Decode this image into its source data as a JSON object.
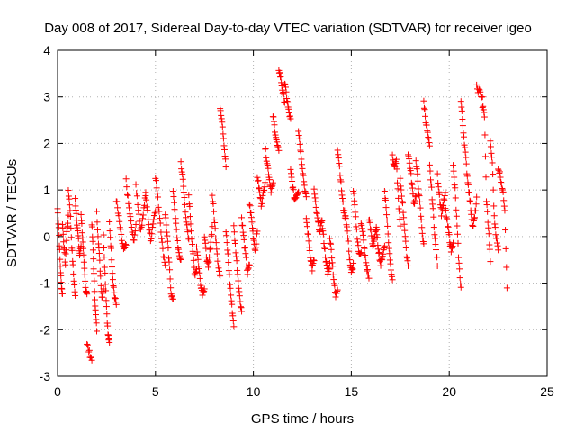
{
  "chart_data": {
    "type": "scatter",
    "title": "Day 008 of 2017, Sidereal Day-to-day VTEC variation (SDTVAR) for receiver igeo",
    "xlabel": "GPS time / hours",
    "ylabel": "SDTVAR / TECUs",
    "xlim": [
      0,
      25
    ],
    "ylim": [
      -3,
      4
    ],
    "xticks": [
      "0",
      "5",
      "10",
      "15",
      "20",
      "25"
    ],
    "yticks": [
      "-3",
      "-2",
      "-1",
      "0",
      "1",
      "2",
      "3",
      "4"
    ],
    "grid": true,
    "marker": "+",
    "series": [
      {
        "name": "SDTVAR",
        "color": "#ff0000",
        "segments": [
          {
            "x0": 0.0,
            "x1": 0.25,
            "y": [
              0.6,
              0.2,
              -0.5,
              -1.0,
              -1.25
            ]
          },
          {
            "x0": 0.25,
            "x1": 0.55,
            "y": [
              0.3,
              -0.2,
              -0.6,
              0.1,
              0.4
            ]
          },
          {
            "x0": 0.55,
            "x1": 0.9,
            "y": [
              1.0,
              0.6,
              -0.2,
              -0.8,
              -1.3
            ]
          },
          {
            "x0": 0.9,
            "x1": 1.2,
            "y": [
              0.8,
              0.4,
              0.0,
              -0.4,
              -0.2
            ]
          },
          {
            "x0": 1.2,
            "x1": 1.5,
            "y": [
              0.5,
              0.0,
              -0.6,
              -1.1,
              -1.2
            ]
          },
          {
            "x0": 1.5,
            "x1": 1.75,
            "y": [
              -2.3,
              -2.5,
              -2.65
            ]
          },
          {
            "x0": 1.75,
            "x1": 2.0,
            "y": [
              0.3,
              -0.3,
              -1.0,
              -1.6,
              -2.0
            ]
          },
          {
            "x0": 2.0,
            "x1": 2.35,
            "y": [
              0.5,
              -0.1,
              -0.7,
              -1.3,
              -1.1
            ]
          },
          {
            "x0": 2.35,
            "x1": 2.65,
            "y": [
              0.0,
              -0.8,
              -1.5,
              -2.1,
              -2.3
            ]
          },
          {
            "x0": 2.65,
            "x1": 3.0,
            "y": [
              0.3,
              -0.3,
              -0.9,
              -1.3,
              -1.45
            ]
          },
          {
            "x0": 3.0,
            "x1": 3.5,
            "y": [
              0.8,
              0.4,
              0.0,
              -0.3,
              -0.2
            ]
          },
          {
            "x0": 3.5,
            "x1": 4.0,
            "y": [
              1.2,
              0.7,
              0.3,
              -0.1,
              0.2
            ]
          },
          {
            "x0": 4.0,
            "x1": 4.5,
            "y": [
              1.1,
              0.6,
              0.1,
              0.5,
              0.9
            ]
          },
          {
            "x0": 4.5,
            "x1": 5.0,
            "y": [
              0.9,
              0.4,
              -0.1,
              0.3,
              0.6
            ]
          },
          {
            "x0": 5.0,
            "x1": 5.5,
            "y": [
              1.3,
              0.8,
              0.3,
              -0.3,
              -0.6
            ]
          },
          {
            "x0": 5.5,
            "x1": 5.9,
            "y": [
              0.5,
              0.0,
              -0.6,
              -1.2,
              -1.4
            ]
          },
          {
            "x0": 5.9,
            "x1": 6.3,
            "y": [
              1.0,
              0.5,
              0.0,
              -0.4,
              -0.5
            ]
          },
          {
            "x0": 6.3,
            "x1": 6.7,
            "y": [
              1.6,
              1.2,
              0.7,
              0.2,
              -0.1
            ]
          },
          {
            "x0": 6.7,
            "x1": 7.1,
            "y": [
              0.9,
              0.3,
              -0.3,
              -0.8,
              -0.7
            ]
          },
          {
            "x0": 7.1,
            "x1": 7.5,
            "y": [
              -0.2,
              -0.6,
              -1.0,
              -1.2,
              -1.1
            ]
          },
          {
            "x0": 7.5,
            "x1": 7.9,
            "y": [
              0.0,
              -0.4,
              -0.7,
              -0.2,
              0.2
            ]
          },
          {
            "x0": 7.9,
            "x1": 8.3,
            "y": [
              0.9,
              0.4,
              -0.1,
              -0.6,
              -0.9
            ]
          },
          {
            "x0": 8.3,
            "x1": 8.6,
            "y": [
              2.8,
              2.5,
              2.0,
              1.5
            ]
          },
          {
            "x0": 8.6,
            "x1": 9.0,
            "y": [
              0.1,
              -0.4,
              -1.0,
              -1.5,
              -1.9
            ]
          },
          {
            "x0": 9.0,
            "x1": 9.4,
            "y": [
              0.2,
              -0.3,
              -0.8,
              -1.3,
              -1.6
            ]
          },
          {
            "x0": 9.4,
            "x1": 9.8,
            "y": [
              0.4,
              0.0,
              -0.4,
              -0.8,
              -0.6
            ]
          },
          {
            "x0": 9.8,
            "x1": 10.2,
            "y": [
              0.7,
              0.4,
              0.0,
              -0.3,
              0.1
            ]
          },
          {
            "x0": 10.2,
            "x1": 10.6,
            "y": [
              1.3,
              1.0,
              0.7,
              0.9,
              1.2
            ]
          },
          {
            "x0": 10.6,
            "x1": 11.0,
            "y": [
              1.9,
              1.6,
              1.3,
              1.0,
              1.1
            ]
          },
          {
            "x0": 11.0,
            "x1": 11.3,
            "y": [
              2.6,
              2.3,
              2.0,
              1.8
            ]
          },
          {
            "x0": 11.3,
            "x1": 11.6,
            "y": [
              3.6,
              3.4,
              3.1,
              2.9
            ]
          },
          {
            "x0": 11.6,
            "x1": 11.9,
            "y": [
              3.3,
              3.0,
              2.7,
              2.5
            ]
          },
          {
            "x0": 11.9,
            "x1": 12.3,
            "y": [
              1.4,
              1.1,
              0.8,
              0.9,
              1.0
            ]
          },
          {
            "x0": 12.3,
            "x1": 12.7,
            "y": [
              2.3,
              1.9,
              1.5,
              1.1,
              0.8
            ]
          },
          {
            "x0": 12.7,
            "x1": 13.1,
            "y": [
              0.4,
              0.0,
              -0.4,
              -0.7,
              -0.5
            ]
          },
          {
            "x0": 13.1,
            "x1": 13.5,
            "y": [
              1.0,
              0.6,
              0.3,
              0.1,
              0.4
            ]
          },
          {
            "x0": 13.5,
            "x1": 13.9,
            "y": [
              0.3,
              -0.1,
              -0.5,
              -0.8,
              -0.6
            ]
          },
          {
            "x0": 13.9,
            "x1": 14.3,
            "y": [
              0.0,
              -0.4,
              -0.9,
              -1.3,
              -1.1
            ]
          },
          {
            "x0": 14.3,
            "x1": 14.7,
            "y": [
              1.9,
              1.5,
              1.0,
              0.6,
              0.4
            ]
          },
          {
            "x0": 14.7,
            "x1": 15.1,
            "y": [
              0.5,
              0.1,
              -0.4,
              -0.8,
              -0.6
            ]
          },
          {
            "x0": 15.1,
            "x1": 15.5,
            "y": [
              1.0,
              0.5,
              0.0,
              -0.4,
              -0.3
            ]
          },
          {
            "x0": 15.5,
            "x1": 15.9,
            "y": [
              0.3,
              0.0,
              -0.4,
              -0.7,
              -0.9
            ]
          },
          {
            "x0": 15.9,
            "x1": 16.3,
            "y": [
              0.4,
              0.1,
              -0.2,
              0.0,
              0.2
            ]
          },
          {
            "x0": 16.3,
            "x1": 16.7,
            "y": [
              0.0,
              -0.3,
              -0.6,
              -0.4,
              -0.2
            ]
          },
          {
            "x0": 16.7,
            "x1": 17.1,
            "y": [
              1.0,
              0.5,
              -0.1,
              -0.6,
              -0.9
            ]
          },
          {
            "x0": 17.1,
            "x1": 17.5,
            "y": [
              1.7,
              1.5,
              1.6,
              0.8,
              0.2
            ]
          },
          {
            "x0": 17.5,
            "x1": 17.9,
            "y": [
              1.2,
              0.8,
              0.3,
              -0.3,
              -0.6
            ]
          },
          {
            "x0": 17.9,
            "x1": 18.3,
            "y": [
              1.8,
              1.5,
              1.1,
              0.7,
              0.9
            ]
          },
          {
            "x0": 18.3,
            "x1": 18.7,
            "y": [
              1.6,
              1.2,
              0.7,
              0.2,
              -0.2
            ]
          },
          {
            "x0": 18.7,
            "x1": 19.0,
            "y": [
              2.9,
              2.5,
              2.2,
              1.9
            ]
          },
          {
            "x0": 19.0,
            "x1": 19.4,
            "y": [
              1.5,
              1.0,
              0.4,
              -0.2,
              -0.6
            ]
          },
          {
            "x0": 19.4,
            "x1": 19.8,
            "y": [
              1.3,
              0.9,
              0.5,
              0.7,
              0.9
            ]
          },
          {
            "x0": 19.8,
            "x1": 20.2,
            "y": [
              0.6,
              0.3,
              0.0,
              -0.3,
              -0.1
            ]
          },
          {
            "x0": 20.2,
            "x1": 20.6,
            "y": [
              1.5,
              1.0,
              0.2,
              -0.6,
              -1.1
            ]
          },
          {
            "x0": 20.6,
            "x1": 21.0,
            "y": [
              2.9,
              2.4,
              1.9,
              1.4,
              1.0
            ]
          },
          {
            "x0": 21.0,
            "x1": 21.4,
            "y": [
              1.0,
              0.6,
              0.2,
              0.4,
              0.8
            ]
          },
          {
            "x0": 21.4,
            "x1": 21.7,
            "y": [
              3.2,
              3.1,
              3.0
            ]
          },
          {
            "x0": 21.7,
            "x1": 22.1,
            "y": [
              2.8,
              2.6,
              0.8,
              0.2,
              -0.5
            ]
          },
          {
            "x0": 22.1,
            "x1": 22.5,
            "y": [
              2.0,
              1.6,
              0.4,
              0.0,
              -0.3
            ]
          },
          {
            "x0": 22.5,
            "x1": 22.95,
            "y": [
              1.5,
              1.3,
              1.0,
              0.6,
              -1.05
            ]
          }
        ]
      }
    ]
  }
}
